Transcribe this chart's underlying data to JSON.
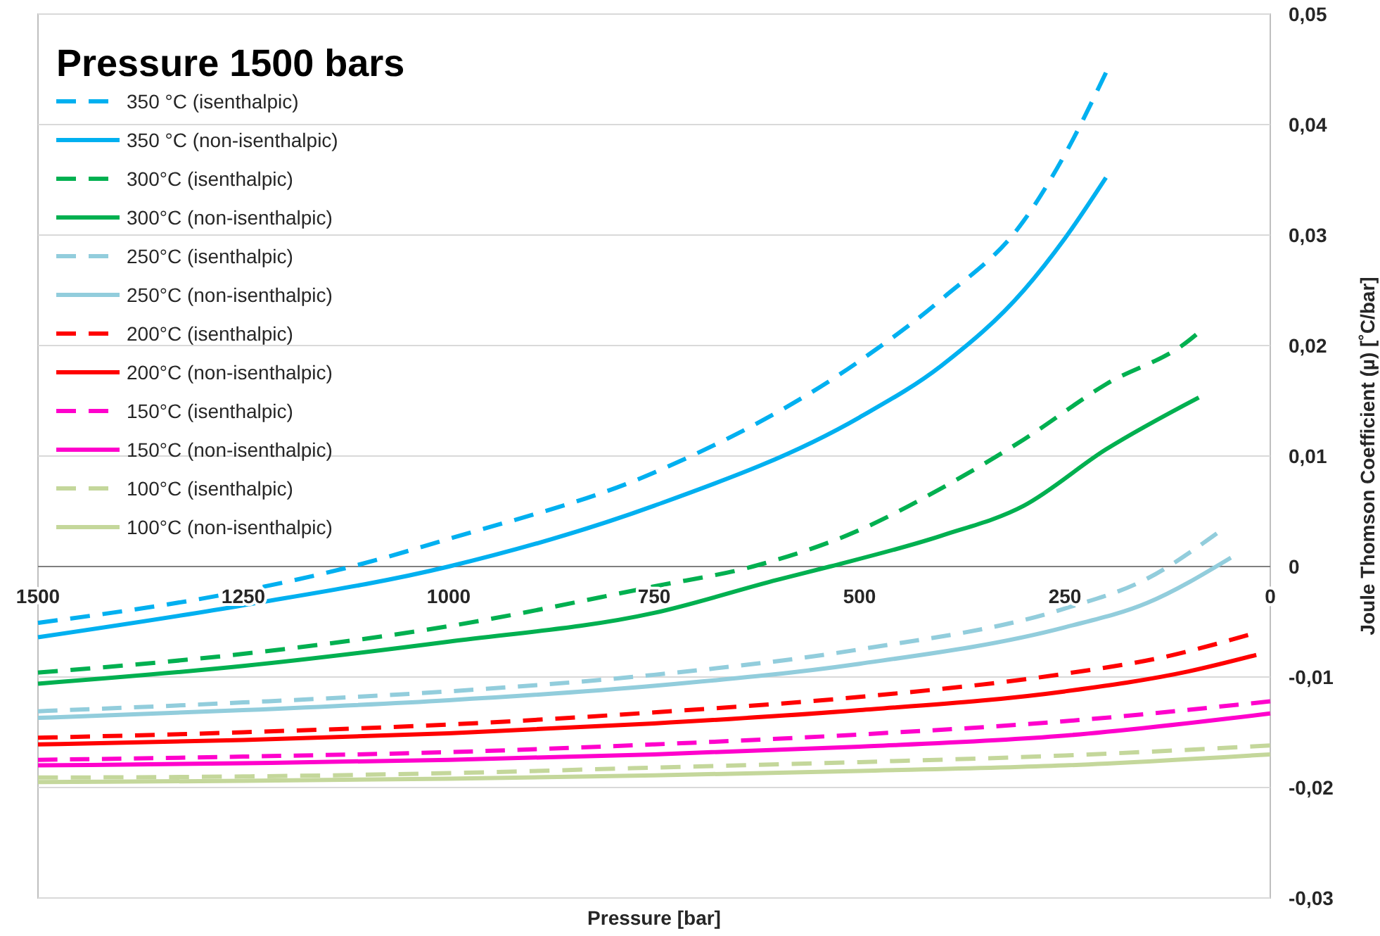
{
  "chart_data": {
    "type": "line",
    "title": "Pressure 1500 bars",
    "xlabel": "Pressure [bar]",
    "ylabel": "Joule Thomson Coefficient (µ) [˚C/bar]",
    "xlim": [
      1500,
      0
    ],
    "xticks": [
      1500,
      1250,
      1000,
      750,
      500,
      250,
      0
    ],
    "ylim": [
      -0.03,
      0.05
    ],
    "yticks": [
      {
        "value": -0.03,
        "label": "-0,03"
      },
      {
        "value": -0.02,
        "label": "-0,02"
      },
      {
        "value": -0.01,
        "label": "-0,01"
      },
      {
        "value": 0,
        "label": "0"
      },
      {
        "value": 0.01,
        "label": "0,01"
      },
      {
        "value": 0.02,
        "label": "0,02"
      },
      {
        "value": 0.03,
        "label": "0,03"
      },
      {
        "value": 0.04,
        "label": "0,04"
      },
      {
        "value": 0.05,
        "label": "0,05"
      }
    ],
    "grid": "y",
    "legend": "top left",
    "marker": "none",
    "series": [
      {
        "name": "350 °C (isenthalpic)",
        "color": "#00b0f0",
        "line_style": "dashed",
        "x": [
          1500,
          1250,
          1118,
          1000,
          750,
          500,
          400,
          300,
          250,
          200
        ],
        "values": [
          -0.0051,
          -0.0022,
          0,
          0.0025,
          0.0085,
          0.0186,
          0.0242,
          0.0313,
          0.0373,
          0.0447
        ]
      },
      {
        "name": "350 °C (non-isenthalpic)",
        "color": "#00b0f0",
        "line_style": "solid",
        "x": [
          1500,
          1250,
          1000,
          750,
          500,
          400,
          300,
          250,
          200
        ],
        "values": [
          -0.0064,
          -0.0035,
          0,
          0.0055,
          0.0135,
          0.0182,
          0.025,
          0.0297,
          0.0352
        ]
      },
      {
        "name": "300°C (isenthalpic)",
        "color": "#00b050",
        "line_style": "dashed",
        "x": [
          1500,
          1250,
          1000,
          750,
          630,
          500,
          400,
          300,
          200,
          100,
          90
        ],
        "values": [
          -0.0096,
          -0.0079,
          -0.0054,
          -0.0018,
          0,
          0.0033,
          0.0071,
          0.0115,
          0.0165,
          0.0204,
          0.021
        ]
      },
      {
        "name": "300°C (non-isenthalpic)",
        "color": "#00b050",
        "line_style": "solid",
        "x": [
          1500,
          1250,
          1000,
          750,
          600,
          536,
          400,
          300,
          200,
          87
        ],
        "values": [
          -0.0106,
          -0.009,
          -0.0068,
          -0.0042,
          -0.0012,
          0,
          0.0028,
          0.0055,
          0.0106,
          0.0153
        ]
      },
      {
        "name": "250°C (isenthalpic)",
        "color": "#92cddc",
        "line_style": "dashed",
        "x": [
          1500,
          1250,
          1000,
          750,
          500,
          250,
          150,
          65
        ],
        "values": [
          -0.0131,
          -0.0123,
          -0.0113,
          -0.0098,
          -0.0075,
          -0.0038,
          -0.0011,
          0.003
        ]
      },
      {
        "name": "250°C (non-isenthalpic)",
        "color": "#92cddc",
        "line_style": "solid",
        "x": [
          1500,
          1250,
          1000,
          750,
          500,
          250,
          150,
          48
        ],
        "values": [
          -0.0137,
          -0.013,
          -0.0121,
          -0.0108,
          -0.0088,
          -0.0055,
          -0.0033,
          0.0008
        ]
      },
      {
        "name": "200°C (isenthalpic)",
        "color": "#ff0000",
        "line_style": "dashed",
        "x": [
          1500,
          1250,
          1000,
          750,
          500,
          250,
          130,
          27
        ],
        "values": [
          -0.0155,
          -0.015,
          -0.0143,
          -0.0132,
          -0.0118,
          -0.0097,
          -0.0082,
          -0.0062
        ]
      },
      {
        "name": "200°C (non-isenthalpic)",
        "color": "#ff0000",
        "line_style": "solid",
        "x": [
          1500,
          1250,
          1000,
          750,
          500,
          250,
          100,
          17
        ],
        "values": [
          -0.0161,
          -0.0157,
          -0.0151,
          -0.0142,
          -0.013,
          -0.0113,
          -0.0095,
          -0.008
        ]
      },
      {
        "name": "150°C (isenthalpic)",
        "color": "#ff00cc",
        "line_style": "dashed",
        "x": [
          1500,
          1250,
          1000,
          750,
          500,
          250,
          0
        ],
        "values": [
          -0.0175,
          -0.0172,
          -0.0168,
          -0.0161,
          -0.0152,
          -0.014,
          -0.0122
        ]
      },
      {
        "name": "150°C (non-isenthalpic)",
        "color": "#ff00cc",
        "line_style": "solid",
        "x": [
          1500,
          1250,
          1000,
          750,
          500,
          250,
          0
        ],
        "values": [
          -0.018,
          -0.0178,
          -0.0175,
          -0.017,
          -0.0163,
          -0.0153,
          -0.0133
        ]
      },
      {
        "name": "100°C (isenthalpic)",
        "color": "#c4d79b",
        "line_style": "dashed",
        "x": [
          1500,
          1250,
          1000,
          750,
          500,
          250,
          0
        ],
        "values": [
          -0.0191,
          -0.019,
          -0.0187,
          -0.0182,
          -0.0177,
          -0.0171,
          -0.0162
        ]
      },
      {
        "name": "100°C (non-isenthalpic)",
        "color": "#c4d79b",
        "line_style": "solid",
        "x": [
          1500,
          1250,
          1000,
          750,
          500,
          250,
          0
        ],
        "values": [
          -0.0195,
          -0.0194,
          -0.0192,
          -0.0189,
          -0.0185,
          -0.018,
          -0.017
        ]
      }
    ]
  }
}
